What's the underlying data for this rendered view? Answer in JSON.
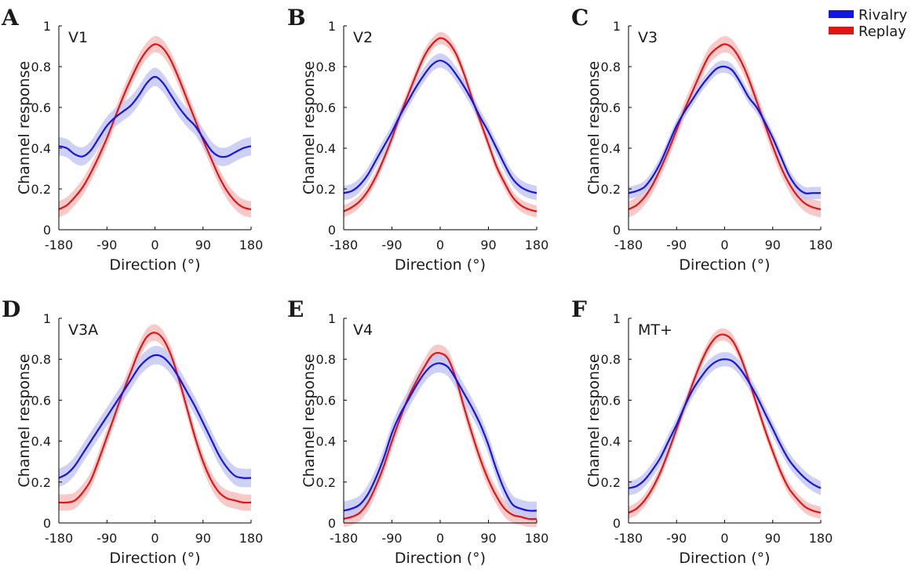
{
  "legend": {
    "placement": "top-right",
    "items": [
      {
        "label": "Rivalry",
        "color": "#1515e0"
      },
      {
        "label": "Replay",
        "color": "#e01515"
      }
    ]
  },
  "colors": {
    "rivalry_line": "#1515e0",
    "rivalry_band": "#c6c8f4",
    "replay_line": "#e01515",
    "replay_band": "#f7c3c3"
  },
  "chart_data": [
    {
      "panel": "A",
      "title": "V1",
      "type": "line",
      "xlabel": "Direction (°)",
      "ylabel": "Channel response",
      "xlim": [
        -180,
        180
      ],
      "ylim": [
        0,
        1
      ],
      "xticks": [
        -180,
        -90,
        0,
        90,
        180
      ],
      "xtick_labels": [
        "-180",
        "-90",
        "0",
        "90",
        "180"
      ],
      "yticks": [
        0,
        0.2,
        0.4,
        0.6,
        0.8,
        1
      ],
      "ytick_labels": [
        "0",
        "0.2",
        "0.4",
        "0.6",
        "0.8",
        "1"
      ],
      "grid": false,
      "series": [
        {
          "name": "Rivalry",
          "x": [
            -180,
            -165,
            -150,
            -135,
            -120,
            -105,
            -90,
            -75,
            -60,
            -45,
            -30,
            -15,
            0,
            15,
            30,
            45,
            60,
            75,
            90,
            105,
            120,
            135,
            150,
            165,
            180
          ],
          "y": [
            0.41,
            0.4,
            0.37,
            0.36,
            0.39,
            0.45,
            0.51,
            0.55,
            0.58,
            0.61,
            0.66,
            0.72,
            0.75,
            0.72,
            0.66,
            0.6,
            0.55,
            0.51,
            0.45,
            0.39,
            0.36,
            0.36,
            0.38,
            0.4,
            0.41
          ],
          "error": 0.045
        },
        {
          "name": "Replay",
          "x": [
            -180,
            -165,
            -150,
            -135,
            -120,
            -105,
            -90,
            -75,
            -60,
            -45,
            -30,
            -15,
            0,
            15,
            30,
            45,
            60,
            75,
            90,
            105,
            120,
            135,
            150,
            165,
            180
          ],
          "y": [
            0.1,
            0.12,
            0.16,
            0.21,
            0.28,
            0.36,
            0.45,
            0.55,
            0.65,
            0.74,
            0.82,
            0.88,
            0.91,
            0.89,
            0.83,
            0.74,
            0.64,
            0.54,
            0.44,
            0.35,
            0.26,
            0.19,
            0.14,
            0.11,
            0.1
          ],
          "error": 0.04
        }
      ]
    },
    {
      "panel": "B",
      "title": "V2",
      "type": "line",
      "xlabel": "Direction (°)",
      "ylabel": "Channel response",
      "xlim": [
        -180,
        180
      ],
      "ylim": [
        0,
        1
      ],
      "xticks": [
        -180,
        -90,
        0,
        90,
        180
      ],
      "xtick_labels": [
        "-180",
        "-90",
        "0",
        "90",
        "180"
      ],
      "yticks": [
        0,
        0.2,
        0.4,
        0.6,
        0.8,
        1
      ],
      "ytick_labels": [
        "0",
        "0.2",
        "0.4",
        "0.6",
        "0.8",
        "1"
      ],
      "grid": false,
      "series": [
        {
          "name": "Rivalry",
          "x": [
            -180,
            -165,
            -150,
            -135,
            -120,
            -105,
            -90,
            -75,
            -60,
            -45,
            -30,
            -15,
            0,
            15,
            30,
            45,
            60,
            75,
            90,
            105,
            120,
            135,
            150,
            165,
            180
          ],
          "y": [
            0.18,
            0.19,
            0.22,
            0.27,
            0.34,
            0.41,
            0.48,
            0.56,
            0.63,
            0.7,
            0.76,
            0.81,
            0.83,
            0.81,
            0.76,
            0.7,
            0.63,
            0.55,
            0.48,
            0.4,
            0.32,
            0.25,
            0.21,
            0.19,
            0.18
          ],
          "error": 0.035
        },
        {
          "name": "Replay",
          "x": [
            -180,
            -165,
            -150,
            -135,
            -120,
            -105,
            -90,
            -75,
            -60,
            -45,
            -30,
            -15,
            0,
            15,
            30,
            45,
            60,
            75,
            90,
            105,
            120,
            135,
            150,
            165,
            180
          ],
          "y": [
            0.09,
            0.11,
            0.14,
            0.19,
            0.26,
            0.35,
            0.45,
            0.56,
            0.66,
            0.76,
            0.85,
            0.91,
            0.94,
            0.92,
            0.86,
            0.76,
            0.64,
            0.53,
            0.42,
            0.31,
            0.23,
            0.16,
            0.12,
            0.1,
            0.09
          ],
          "error": 0.03
        }
      ]
    },
    {
      "panel": "C",
      "title": "V3",
      "type": "line",
      "xlabel": "Direction (°)",
      "ylabel": "Channel response",
      "xlim": [
        -180,
        180
      ],
      "ylim": [
        0,
        1
      ],
      "xticks": [
        -180,
        -90,
        0,
        90,
        180
      ],
      "xtick_labels": [
        "-180",
        "-90",
        "0",
        "90",
        "180"
      ],
      "yticks": [
        0,
        0.2,
        0.4,
        0.6,
        0.8,
        1
      ],
      "ytick_labels": [
        "0",
        "0.2",
        "0.4",
        "0.6",
        "0.8",
        "1"
      ],
      "grid": false,
      "series": [
        {
          "name": "Rivalry",
          "x": [
            -180,
            -165,
            -150,
            -135,
            -120,
            -105,
            -90,
            -75,
            -60,
            -45,
            -30,
            -15,
            0,
            15,
            30,
            45,
            60,
            75,
            90,
            105,
            120,
            135,
            150,
            165,
            180
          ],
          "y": [
            0.18,
            0.19,
            0.21,
            0.26,
            0.33,
            0.42,
            0.51,
            0.58,
            0.64,
            0.7,
            0.75,
            0.79,
            0.8,
            0.78,
            0.72,
            0.65,
            0.6,
            0.53,
            0.45,
            0.36,
            0.27,
            0.21,
            0.18,
            0.18,
            0.18
          ],
          "error": 0.03
        },
        {
          "name": "Replay",
          "x": [
            -180,
            -165,
            -150,
            -135,
            -120,
            -105,
            -90,
            -75,
            -60,
            -45,
            -30,
            -15,
            0,
            15,
            30,
            45,
            60,
            75,
            90,
            105,
            120,
            135,
            150,
            165,
            180
          ],
          "y": [
            0.1,
            0.12,
            0.16,
            0.22,
            0.3,
            0.39,
            0.49,
            0.59,
            0.68,
            0.77,
            0.85,
            0.89,
            0.91,
            0.89,
            0.83,
            0.74,
            0.63,
            0.52,
            0.41,
            0.31,
            0.23,
            0.17,
            0.13,
            0.11,
            0.1
          ],
          "error": 0.04
        }
      ]
    },
    {
      "panel": "D",
      "title": "V3A",
      "type": "line",
      "xlabel": "Direction (°)",
      "ylabel": "Channel response",
      "xlim": [
        -180,
        180
      ],
      "ylim": [
        0,
        1
      ],
      "xticks": [
        -180,
        -90,
        0,
        90,
        180
      ],
      "xtick_labels": [
        "-180",
        "-90",
        "0",
        "90",
        "180"
      ],
      "yticks": [
        0,
        0.2,
        0.4,
        0.6,
        0.8,
        1
      ],
      "ytick_labels": [
        "0",
        "0.2",
        "0.4",
        "0.6",
        "0.8",
        "1"
      ],
      "grid": false,
      "series": [
        {
          "name": "Rivalry",
          "x": [
            -180,
            -165,
            -150,
            -135,
            -120,
            -105,
            -90,
            -75,
            -60,
            -45,
            -30,
            -15,
            0,
            15,
            30,
            45,
            60,
            75,
            90,
            105,
            120,
            135,
            150,
            165,
            180
          ],
          "y": [
            0.22,
            0.24,
            0.28,
            0.34,
            0.4,
            0.46,
            0.52,
            0.58,
            0.64,
            0.7,
            0.76,
            0.8,
            0.82,
            0.81,
            0.77,
            0.71,
            0.64,
            0.57,
            0.49,
            0.41,
            0.33,
            0.27,
            0.23,
            0.22,
            0.22
          ],
          "error": 0.045
        },
        {
          "name": "Replay",
          "x": [
            -180,
            -165,
            -150,
            -135,
            -120,
            -105,
            -90,
            -75,
            -60,
            -45,
            -30,
            -15,
            0,
            15,
            30,
            45,
            60,
            75,
            90,
            105,
            120,
            135,
            150,
            165,
            180
          ],
          "y": [
            0.1,
            0.1,
            0.11,
            0.15,
            0.21,
            0.31,
            0.42,
            0.53,
            0.64,
            0.74,
            0.84,
            0.91,
            0.93,
            0.9,
            0.82,
            0.7,
            0.56,
            0.42,
            0.3,
            0.21,
            0.15,
            0.12,
            0.11,
            0.1,
            0.1
          ],
          "error": 0.04
        }
      ]
    },
    {
      "panel": "E",
      "title": "V4",
      "type": "line",
      "xlabel": "Direction (°)",
      "ylabel": "Channel response",
      "xlim": [
        -180,
        180
      ],
      "ylim": [
        0,
        1
      ],
      "xticks": [
        -180,
        -90,
        0,
        90,
        180
      ],
      "xtick_labels": [
        "-180",
        "-90",
        "0",
        "90",
        "180"
      ],
      "yticks": [
        0,
        0.2,
        0.4,
        0.6,
        0.8,
        1
      ],
      "ytick_labels": [
        "0",
        "0.2",
        "0.4",
        "0.6",
        "0.8",
        "1"
      ],
      "grid": false,
      "series": [
        {
          "name": "Rivalry",
          "x": [
            -180,
            -165,
            -150,
            -135,
            -120,
            -105,
            -90,
            -75,
            -60,
            -45,
            -30,
            -15,
            0,
            15,
            30,
            45,
            60,
            75,
            90,
            105,
            120,
            135,
            150,
            165,
            180
          ],
          "y": [
            0.06,
            0.07,
            0.09,
            0.14,
            0.22,
            0.32,
            0.44,
            0.53,
            0.6,
            0.67,
            0.73,
            0.77,
            0.78,
            0.76,
            0.7,
            0.63,
            0.56,
            0.48,
            0.38,
            0.26,
            0.16,
            0.09,
            0.07,
            0.06,
            0.06
          ],
          "error": 0.045
        },
        {
          "name": "Replay",
          "x": [
            -180,
            -165,
            -150,
            -135,
            -120,
            -105,
            -90,
            -75,
            -60,
            -45,
            -30,
            -15,
            0,
            15,
            30,
            45,
            60,
            75,
            90,
            105,
            120,
            135,
            150,
            165,
            180
          ],
          "y": [
            0.02,
            0.03,
            0.05,
            0.1,
            0.18,
            0.28,
            0.4,
            0.51,
            0.61,
            0.69,
            0.76,
            0.82,
            0.83,
            0.8,
            0.7,
            0.56,
            0.43,
            0.31,
            0.21,
            0.13,
            0.07,
            0.04,
            0.03,
            0.02,
            0.02
          ],
          "error": 0.04
        }
      ]
    },
    {
      "panel": "F",
      "title": "MT+",
      "type": "line",
      "xlabel": "Direction (°)",
      "ylabel": "Channel response",
      "xlim": [
        -180,
        180
      ],
      "ylim": [
        0,
        1
      ],
      "xticks": [
        -180,
        -90,
        0,
        90,
        180
      ],
      "xtick_labels": [
        "-180",
        "-90",
        "0",
        "90",
        "180"
      ],
      "yticks": [
        0,
        0.2,
        0.4,
        0.6,
        0.8,
        1
      ],
      "ytick_labels": [
        "0",
        "0.2",
        "0.4",
        "0.6",
        "0.8",
        "1"
      ],
      "grid": false,
      "series": [
        {
          "name": "Rivalry",
          "x": [
            -180,
            -165,
            -150,
            -135,
            -120,
            -105,
            -90,
            -75,
            -60,
            -45,
            -30,
            -15,
            0,
            15,
            30,
            45,
            60,
            75,
            90,
            105,
            120,
            135,
            150,
            165,
            180
          ],
          "y": [
            0.17,
            0.18,
            0.21,
            0.26,
            0.32,
            0.4,
            0.48,
            0.57,
            0.65,
            0.71,
            0.76,
            0.79,
            0.8,
            0.79,
            0.75,
            0.69,
            0.62,
            0.54,
            0.46,
            0.38,
            0.31,
            0.26,
            0.22,
            0.19,
            0.17
          ],
          "error": 0.035
        },
        {
          "name": "Replay",
          "x": [
            -180,
            -165,
            -150,
            -135,
            -120,
            -105,
            -90,
            -75,
            -60,
            -45,
            -30,
            -15,
            0,
            15,
            30,
            45,
            60,
            75,
            90,
            105,
            120,
            135,
            150,
            165,
            180
          ],
          "y": [
            0.05,
            0.07,
            0.11,
            0.17,
            0.25,
            0.35,
            0.46,
            0.57,
            0.68,
            0.78,
            0.86,
            0.91,
            0.92,
            0.89,
            0.81,
            0.7,
            0.58,
            0.46,
            0.35,
            0.25,
            0.17,
            0.12,
            0.08,
            0.06,
            0.05
          ],
          "error": 0.03
        }
      ]
    }
  ]
}
